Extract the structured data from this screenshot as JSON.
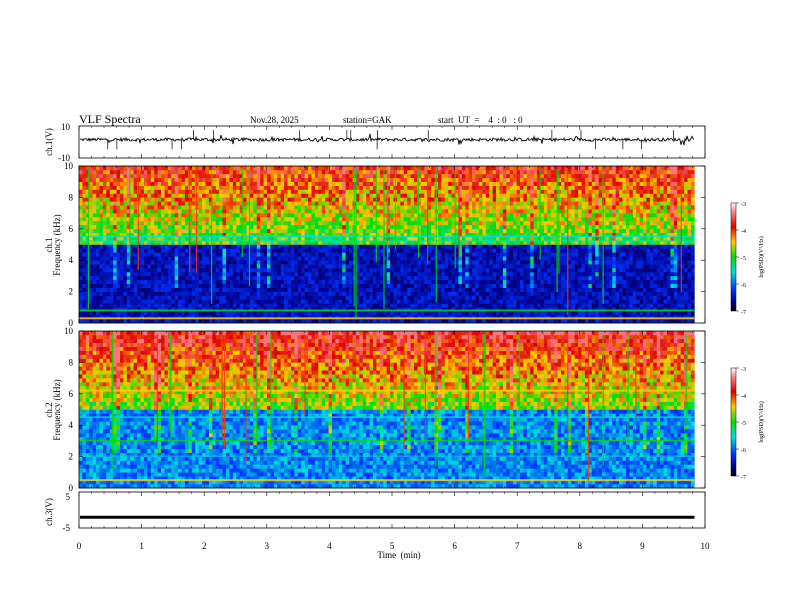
{
  "header": {
    "title": "VLF  Spectra",
    "date": "Nov.28, 2025",
    "station": "station=GAK",
    "start_ut": "start  UT  =    4  : 0   : 0"
  },
  "chart_data": [
    {
      "type": "line",
      "panel": "ch1-waveform",
      "ylabel": "ch.1(V)",
      "ylim": [
        -10,
        10
      ],
      "y_ticks": [
        "10",
        "-10"
      ],
      "xlim": [
        0,
        10
      ],
      "baseline": 1.5,
      "x_end": 9.83
    },
    {
      "type": "heatmap",
      "panel": "ch1-spectrogram",
      "ylabel": "ch.1\nFrequency  (kHz)",
      "ylim": [
        0,
        10
      ],
      "y_ticks": [
        "0",
        "2",
        "4",
        "6",
        "8",
        "10"
      ],
      "xlim": [
        0,
        10
      ],
      "x_end": 9.83,
      "colorbar": {
        "label": "log(PSD)(V²/Hz)",
        "range": [
          -7,
          -3
        ],
        "ticks": [
          "-3",
          "-4",
          "-5",
          "-6",
          "-7"
        ]
      }
    },
    {
      "type": "heatmap",
      "panel": "ch2-spectrogram",
      "ylabel": "ch.2\nFrequency  (kHz)",
      "ylim": [
        0,
        10
      ],
      "y_ticks": [
        "0",
        "2",
        "4",
        "6",
        "8",
        "10"
      ],
      "xlim": [
        0,
        10
      ],
      "x_end": 9.83,
      "colorbar": {
        "label": "log(PSD)(V²/Hz)",
        "range": [
          -7,
          -3
        ],
        "ticks": [
          "-3",
          "-4",
          "-5",
          "-6",
          "-7"
        ]
      }
    },
    {
      "type": "line",
      "panel": "ch3-waveform",
      "ylabel": "ch.3(V)",
      "ylim": [
        -5,
        5
      ],
      "y_ticks": [
        "5",
        "-5"
      ],
      "xlim": [
        0,
        10
      ],
      "baseline": -2,
      "x_end": 9.83
    }
  ],
  "x_axis": {
    "label": "Time  (min)",
    "ticks": [
      "0",
      "1",
      "2",
      "3",
      "4",
      "5",
      "6",
      "7",
      "8",
      "9",
      "10"
    ]
  },
  "colorbar_label": "log(PSD)(V²/Hz)"
}
